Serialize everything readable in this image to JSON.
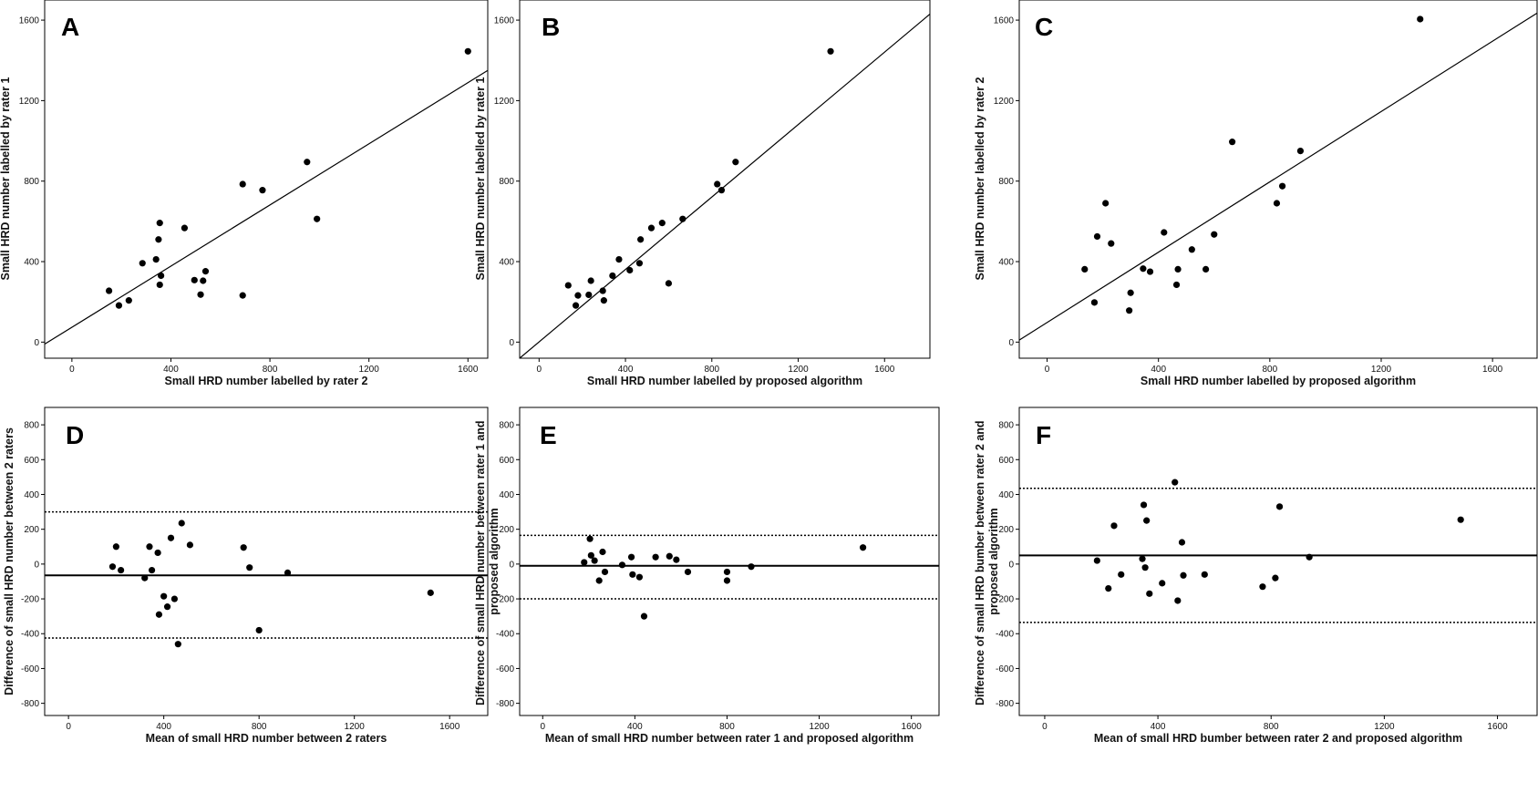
{
  "chart_data": [
    {
      "id": "A",
      "type": "scatter",
      "letter": "A",
      "xlabel": "Small HRD number labelled by rater 2",
      "ylabel": "Small HRD number labelled by rater 1",
      "xlim": [
        -110,
        1680
      ],
      "ylim": [
        -80,
        1700
      ],
      "xticks": [
        0,
        400,
        800,
        1200,
        1600
      ],
      "yticks": [
        0,
        400,
        800,
        1200,
        1600
      ],
      "points": [
        [
          150,
          255
        ],
        [
          190,
          182
        ],
        [
          230,
          207
        ],
        [
          285,
          392
        ],
        [
          340,
          411
        ],
        [
          350,
          510
        ],
        [
          355,
          592
        ],
        [
          355,
          285
        ],
        [
          360,
          330
        ],
        [
          455,
          567
        ],
        [
          495,
          308
        ],
        [
          520,
          236
        ],
        [
          530,
          305
        ],
        [
          540,
          352
        ],
        [
          690,
          232
        ],
        [
          690,
          785
        ],
        [
          770,
          755
        ],
        [
          950,
          895
        ],
        [
          990,
          612
        ],
        [
          1600,
          1445
        ]
      ],
      "fit_line": {
        "x": [
          -110,
          1680
        ],
        "y": [
          -10,
          1350
        ]
      },
      "dashed_lines": []
    },
    {
      "id": "B",
      "type": "scatter",
      "letter": "B",
      "xlabel": "Small HRD number labelled by proposed algorithm",
      "ylabel": "Small HRD number labelled by rater 1",
      "xlim": [
        -90,
        1810
      ],
      "ylim": [
        -80,
        1700
      ],
      "xticks": [
        0,
        400,
        800,
        1200,
        1600
      ],
      "yticks": [
        0,
        400,
        800,
        1200,
        1600
      ],
      "points": [
        [
          135,
          282
        ],
        [
          170,
          182
        ],
        [
          180,
          232
        ],
        [
          230,
          235
        ],
        [
          240,
          305
        ],
        [
          295,
          255
        ],
        [
          300,
          207
        ],
        [
          340,
          330
        ],
        [
          370,
          411
        ],
        [
          420,
          357
        ],
        [
          465,
          392
        ],
        [
          470,
          510
        ],
        [
          520,
          567
        ],
        [
          570,
          592
        ],
        [
          600,
          292
        ],
        [
          665,
          612
        ],
        [
          825,
          785
        ],
        [
          845,
          755
        ],
        [
          910,
          895
        ],
        [
          1350,
          1445
        ]
      ],
      "fit_line": {
        "x": [
          -90,
          1810
        ],
        "y": [
          -80,
          1630
        ]
      },
      "dashed_lines": []
    },
    {
      "id": "C",
      "type": "scatter",
      "letter": "C",
      "xlabel": "Small HRD number labelled by proposed algorithm",
      "ylabel": "Small HRD number labelled by rater 2",
      "xlim": [
        -100,
        1760
      ],
      "ylim": [
        -80,
        1700
      ],
      "xticks": [
        0,
        400,
        800,
        1200,
        1600
      ],
      "yticks": [
        0,
        400,
        800,
        1200,
        1600
      ],
      "points": [
        [
          135,
          362
        ],
        [
          170,
          197
        ],
        [
          180,
          525
        ],
        [
          210,
          690
        ],
        [
          230,
          490
        ],
        [
          295,
          157
        ],
        [
          300,
          245
        ],
        [
          345,
          365
        ],
        [
          370,
          350
        ],
        [
          420,
          545
        ],
        [
          465,
          285
        ],
        [
          470,
          362
        ],
        [
          520,
          460
        ],
        [
          570,
          362
        ],
        [
          600,
          535
        ],
        [
          665,
          995
        ],
        [
          825,
          690
        ],
        [
          845,
          775
        ],
        [
          910,
          950
        ],
        [
          1340,
          1605
        ]
      ],
      "fit_line": {
        "x": [
          -100,
          1760
        ],
        "y": [
          10,
          1635
        ]
      },
      "dashed_lines": []
    },
    {
      "id": "D",
      "type": "scatter",
      "letter": "D",
      "xlabel": "Mean of small HRD number between 2 raters",
      "ylabel": "Difference of small HRD number between 2 raters",
      "xlim": [
        -100,
        1760
      ],
      "ylim": [
        -870,
        900
      ],
      "xticks": [
        0,
        400,
        800,
        1200,
        1600
      ],
      "yticks": [
        -800,
        -600,
        -400,
        -200,
        0,
        200,
        400,
        600,
        800
      ],
      "points": [
        [
          185,
          -15
        ],
        [
          200,
          100
        ],
        [
          220,
          -35
        ],
        [
          320,
          -80
        ],
        [
          340,
          100
        ],
        [
          350,
          -35
        ],
        [
          375,
          65
        ],
        [
          380,
          -290
        ],
        [
          400,
          -185
        ],
        [
          415,
          -245
        ],
        [
          430,
          150
        ],
        [
          445,
          -200
        ],
        [
          460,
          -460
        ],
        [
          475,
          235
        ],
        [
          510,
          110
        ],
        [
          735,
          95
        ],
        [
          760,
          -20
        ],
        [
          800,
          -380
        ],
        [
          920,
          -50
        ],
        [
          1520,
          -165
        ]
      ],
      "fit_line": {
        "x": [
          -100,
          1760
        ],
        "y": [
          -65,
          -65
        ]
      },
      "dashed_lines": [
        {
          "y": 300
        },
        {
          "y": -425
        }
      ]
    },
    {
      "id": "E",
      "type": "scatter",
      "letter": "E",
      "xlabel": "Mean of small HRD number between rater 1 and proposed algorithm",
      "ylabel": "Difference of small HRD number between rater 1 and proposed algorithm",
      "xlim": [
        -100,
        1720
      ],
      "ylim": [
        -870,
        900
      ],
      "xticks": [
        0,
        400,
        800,
        1200,
        1600
      ],
      "yticks": [
        -800,
        -600,
        -400,
        -200,
        0,
        200,
        400,
        600,
        800
      ],
      "points": [
        [
          180,
          10
        ],
        [
          205,
          145
        ],
        [
          210,
          50
        ],
        [
          225,
          20
        ],
        [
          245,
          -95
        ],
        [
          260,
          70
        ],
        [
          270,
          -45
        ],
        [
          345,
          -5
        ],
        [
          385,
          40
        ],
        [
          390,
          -60
        ],
        [
          420,
          -75
        ],
        [
          440,
          -300
        ],
        [
          490,
          40
        ],
        [
          550,
          45
        ],
        [
          580,
          25
        ],
        [
          630,
          -45
        ],
        [
          800,
          -45
        ],
        [
          800,
          -95
        ],
        [
          905,
          -15
        ],
        [
          1390,
          95
        ]
      ],
      "fit_line": {
        "x": [
          -100,
          1720
        ],
        "y": [
          -10,
          -10
        ]
      },
      "dashed_lines": [
        {
          "y": 165
        },
        {
          "y": -200
        }
      ]
    },
    {
      "id": "F",
      "type": "scatter",
      "letter": "F",
      "xlabel": "Mean of small HRD bumber between rater 2 and proposed algorithm",
      "ylabel": "Difference of small HRD bumber between rater 2 and proposed algorithm",
      "xlim": [
        -90,
        1740
      ],
      "ylim": [
        -870,
        900
      ],
      "xticks": [
        0,
        400,
        800,
        1200,
        1600
      ],
      "yticks": [
        -800,
        -600,
        -400,
        -200,
        0,
        200,
        400,
        600,
        800
      ],
      "points": [
        [
          185,
          20
        ],
        [
          225,
          -140
        ],
        [
          245,
          220
        ],
        [
          270,
          -60
        ],
        [
          345,
          30
        ],
        [
          350,
          340
        ],
        [
          355,
          -20
        ],
        [
          360,
          250
        ],
        [
          370,
          -170
        ],
        [
          415,
          -110
        ],
        [
          460,
          470
        ],
        [
          470,
          -210
        ],
        [
          485,
          125
        ],
        [
          490,
          -65
        ],
        [
          565,
          -60
        ],
        [
          770,
          -130
        ],
        [
          815,
          -80
        ],
        [
          830,
          330
        ],
        [
          935,
          40
        ],
        [
          1470,
          255
        ]
      ],
      "fit_line": {
        "x": [
          -90,
          1740
        ],
        "y": [
          50,
          50
        ]
      },
      "dashed_lines": [
        {
          "y": 435
        },
        {
          "y": -335
        }
      ]
    }
  ]
}
